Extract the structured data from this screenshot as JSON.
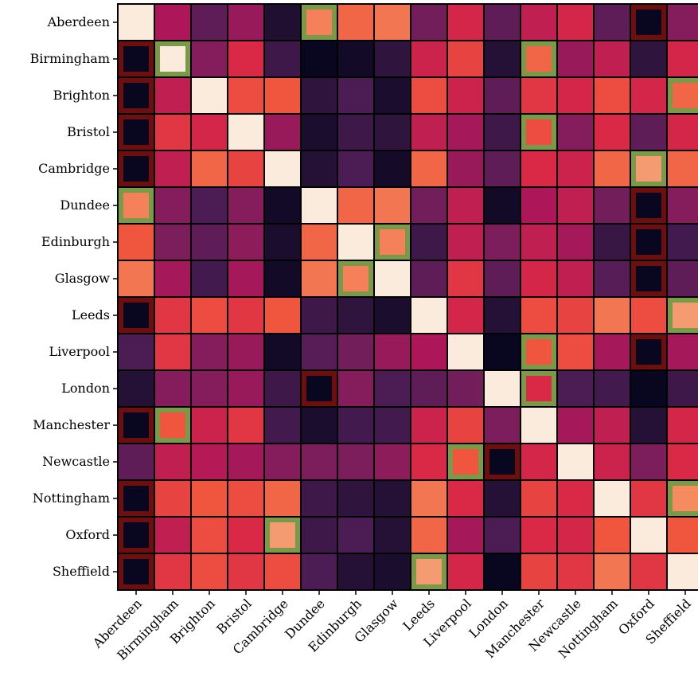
{
  "chart_data": {
    "type": "heatmap",
    "rows": [
      "Aberdeen",
      "Birmingham",
      "Brighton",
      "Bristol",
      "Cambridge",
      "Dundee",
      "Edinburgh",
      "Glasgow",
      "Leeds",
      "Liverpool",
      "London",
      "Manchester",
      "Newcastle",
      "Nottingham",
      "Oxford",
      "Sheffield"
    ],
    "columns": [
      "Aberdeen",
      "Birmingham",
      "Brighton",
      "Bristol",
      "Cambridge",
      "Dundee",
      "Edinburgh",
      "Glasgow",
      "Leeds",
      "Liverpool",
      "London",
      "Manchester",
      "Newcastle",
      "Nottingham",
      "Oxford",
      "Sheffield"
    ],
    "values": [
      [
        1.0,
        0.5,
        0.3,
        0.45,
        0.1,
        0.8,
        0.75,
        0.78,
        0.35,
        0.6,
        0.3,
        0.55,
        0.6,
        0.3,
        0.02,
        0.4
      ],
      [
        0.02,
        1.0,
        0.4,
        0.62,
        0.2,
        0.02,
        0.05,
        0.15,
        0.58,
        0.68,
        0.12,
        0.75,
        0.45,
        0.55,
        0.15,
        0.6
      ],
      [
        0.02,
        0.55,
        1.0,
        0.7,
        0.72,
        0.15,
        0.25,
        0.08,
        0.7,
        0.58,
        0.3,
        0.65,
        0.6,
        0.7,
        0.6,
        0.75
      ],
      [
        0.02,
        0.65,
        0.6,
        1.0,
        0.45,
        0.08,
        0.2,
        0.15,
        0.55,
        0.48,
        0.2,
        0.7,
        0.4,
        0.62,
        0.3,
        0.6
      ],
      [
        0.02,
        0.55,
        0.75,
        0.68,
        1.0,
        0.12,
        0.25,
        0.06,
        0.75,
        0.45,
        0.3,
        0.62,
        0.58,
        0.75,
        0.85,
        0.75
      ],
      [
        0.8,
        0.4,
        0.25,
        0.4,
        0.05,
        1.0,
        0.75,
        0.78,
        0.35,
        0.55,
        0.05,
        0.5,
        0.55,
        0.35,
        0.02,
        0.4
      ],
      [
        0.72,
        0.38,
        0.3,
        0.42,
        0.08,
        0.75,
        1.0,
        0.8,
        0.2,
        0.55,
        0.38,
        0.55,
        0.48,
        0.18,
        0.02,
        0.22
      ],
      [
        0.78,
        0.48,
        0.22,
        0.48,
        0.05,
        0.78,
        0.8,
        1.0,
        0.3,
        0.65,
        0.3,
        0.6,
        0.55,
        0.28,
        0.02,
        0.3
      ],
      [
        0.02,
        0.65,
        0.7,
        0.65,
        0.72,
        0.2,
        0.15,
        0.08,
        1.0,
        0.6,
        0.12,
        0.7,
        0.68,
        0.78,
        0.7,
        0.85
      ],
      [
        0.25,
        0.65,
        0.4,
        0.45,
        0.05,
        0.28,
        0.35,
        0.45,
        0.5,
        1.0,
        0.02,
        0.72,
        0.7,
        0.48,
        0.02,
        0.48
      ],
      [
        0.12,
        0.4,
        0.4,
        0.45,
        0.2,
        0.02,
        0.4,
        0.25,
        0.3,
        0.35,
        1.0,
        0.62,
        0.25,
        0.22,
        0.02,
        0.2
      ],
      [
        0.02,
        0.72,
        0.58,
        0.65,
        0.22,
        0.08,
        0.22,
        0.22,
        0.58,
        0.68,
        0.38,
        1.0,
        0.48,
        0.55,
        0.12,
        0.6
      ],
      [
        0.3,
        0.55,
        0.52,
        0.48,
        0.4,
        0.38,
        0.38,
        0.42,
        0.62,
        0.72,
        0.02,
        0.6,
        1.0,
        0.58,
        0.38,
        0.62
      ],
      [
        0.02,
        0.68,
        0.72,
        0.7,
        0.75,
        0.2,
        0.15,
        0.12,
        0.78,
        0.62,
        0.12,
        0.68,
        0.62,
        1.0,
        0.65,
        0.82
      ],
      [
        0.02,
        0.55,
        0.7,
        0.62,
        0.85,
        0.2,
        0.25,
        0.12,
        0.75,
        0.48,
        0.25,
        0.62,
        0.6,
        0.72,
        1.0,
        0.72
      ],
      [
        0.02,
        0.65,
        0.7,
        0.65,
        0.7,
        0.25,
        0.12,
        0.08,
        0.85,
        0.6,
        0.02,
        0.68,
        0.65,
        0.78,
        0.65,
        1.0
      ]
    ],
    "highlight_high": [
      [
        0,
        5
      ],
      [
        1,
        11
      ],
      [
        1,
        1
      ],
      [
        2,
        15
      ],
      [
        3,
        11
      ],
      [
        4,
        14
      ],
      [
        5,
        0
      ],
      [
        6,
        7
      ],
      [
        7,
        6
      ],
      [
        8,
        15
      ],
      [
        9,
        11
      ],
      [
        11,
        1
      ],
      [
        12,
        9
      ],
      [
        13,
        15
      ],
      [
        14,
        4
      ],
      [
        15,
        8
      ],
      [
        10,
        11
      ]
    ],
    "highlight_low": [
      [
        0,
        14
      ],
      [
        1,
        0
      ],
      [
        2,
        0
      ],
      [
        3,
        0
      ],
      [
        4,
        0
      ],
      [
        5,
        14
      ],
      [
        6,
        14
      ],
      [
        7,
        14
      ],
      [
        8,
        0
      ],
      [
        9,
        14
      ],
      [
        10,
        5
      ],
      [
        11,
        0
      ],
      [
        12,
        10
      ],
      [
        13,
        0
      ],
      [
        14,
        0
      ],
      [
        15,
        0
      ]
    ],
    "colormap": "rocket",
    "highlight_high_color": "#7a9a4a",
    "highlight_low_color": "#6e0f0f",
    "grid": true
  }
}
